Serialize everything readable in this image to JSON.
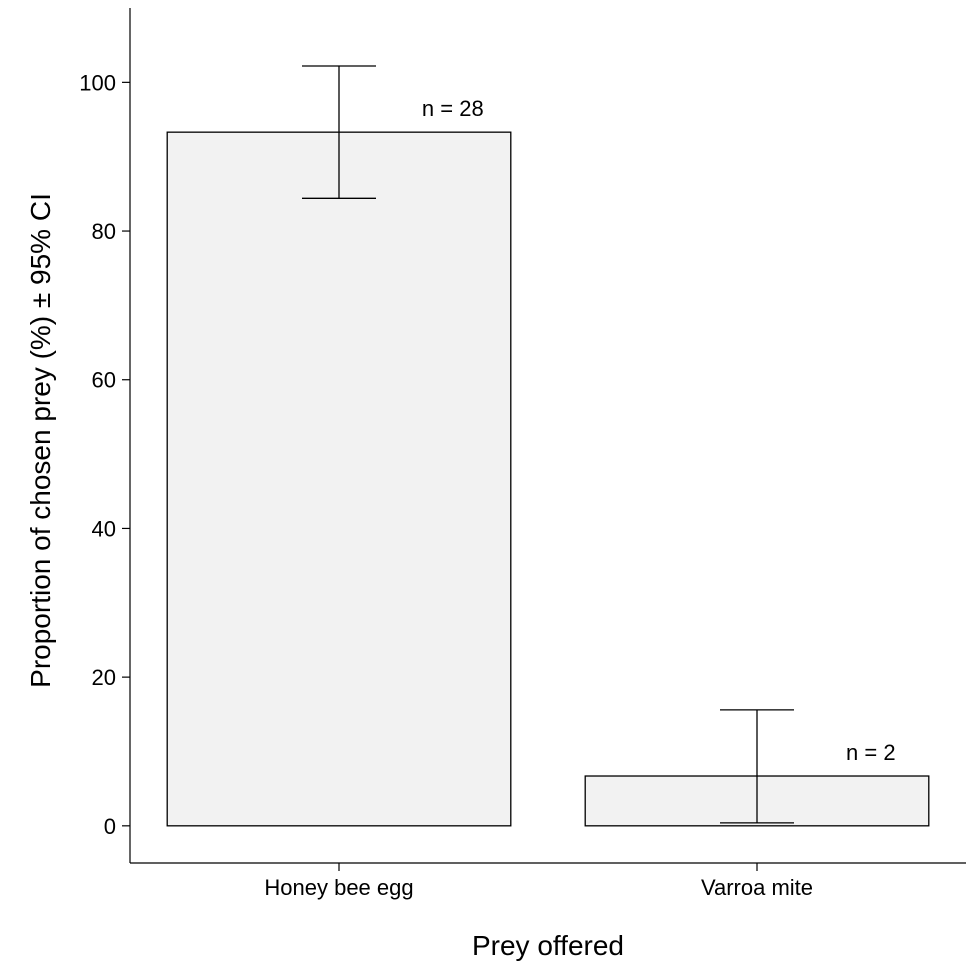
{
  "chart_data": {
    "type": "bar",
    "title": "",
    "xlabel": "Prey offered",
    "ylabel": "Proportion of chosen prey (%) ± 95% CI",
    "categories": [
      "Honey bee egg",
      "Varroa mite"
    ],
    "values": [
      93.3,
      6.7
    ],
    "error_bars": [
      {
        "lower": 84.4,
        "upper": 102.2
      },
      {
        "lower": 0.4,
        "upper": 15.6
      }
    ],
    "annotations": [
      "n = 28",
      "n = 2"
    ],
    "ylim": [
      -5,
      110
    ],
    "yticks": [
      0,
      20,
      40,
      60,
      80,
      100
    ],
    "grid": false,
    "legend": "none",
    "bar_fill": "#f2f2f2",
    "bar_stroke": "#000000"
  }
}
